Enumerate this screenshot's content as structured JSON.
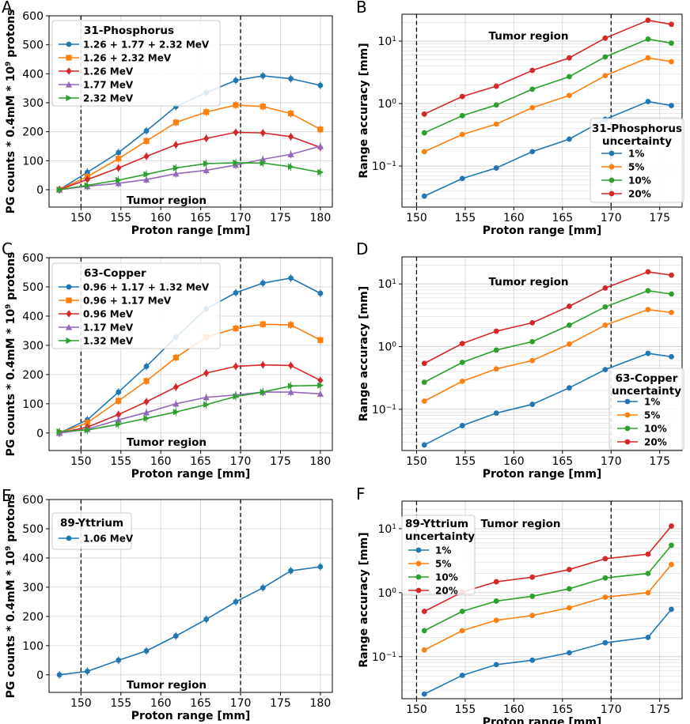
{
  "figure": {
    "region_label": "Tumor region",
    "x_label": "Proton range [mm]",
    "count_y_label": "PG counts * 0.4mM * 10⁹ protons",
    "accuracy_y_label": "Range accuracy [mm]"
  },
  "chart_data": [
    {
      "panel": "A",
      "type": "line",
      "title": "",
      "xlabel": "Proton range [mm]",
      "ylabel": "PG counts * 0.4mM * 10⁹ protons",
      "xlim": [
        146,
        181.5
      ],
      "ylim": [
        -60,
        600
      ],
      "yscale": "linear",
      "x_ticks": [
        150,
        155,
        160,
        165,
        170,
        175,
        180
      ],
      "y_ticks": [
        0,
        100,
        200,
        300,
        400,
        500,
        600
      ],
      "vlines": [
        150,
        170
      ],
      "region_label": "Tumor region",
      "legend_title": "31-Phosphorus",
      "legend_position": "upper-left",
      "x": [
        147.3,
        150.8,
        154.7,
        158.2,
        161.9,
        165.7,
        169.4,
        172.8,
        176.3,
        180.0
      ],
      "series": [
        {
          "name": "1.26 + 1.77 + 2.32 MeV",
          "color": "#1f77b4",
          "marker": "circle",
          "values": [
            0,
            60,
            128,
            203,
            287,
            335,
            377,
            393,
            383,
            360
          ]
        },
        {
          "name": "1.26 + 2.32 MeV",
          "color": "#ff7f0e",
          "marker": "square",
          "values": [
            0,
            45,
            107,
            168,
            232,
            268,
            292,
            287,
            263,
            208
          ]
        },
        {
          "name": "1.26 MeV",
          "color": "#d62728",
          "marker": "diamond",
          "values": [
            0,
            35,
            75,
            115,
            155,
            177,
            198,
            196,
            183,
            146
          ]
        },
        {
          "name": "1.77 MeV",
          "color": "#9467bd",
          "marker": "triangle-up",
          "values": [
            0,
            12,
            22,
            35,
            55,
            67,
            85,
            105,
            122,
            150
          ]
        },
        {
          "name": "2.32 MeV",
          "color": "#2ca02c",
          "marker": "triangle-right",
          "values": [
            0,
            15,
            33,
            53,
            75,
            90,
            93,
            92,
            79,
            60
          ]
        }
      ]
    },
    {
      "panel": "B",
      "type": "line",
      "title": "",
      "xlabel": "Proton range [mm]",
      "ylabel": "Range accuracy [mm]",
      "xlim": [
        148.5,
        177.3
      ],
      "ylim": [
        0.022,
        27
      ],
      "yscale": "log",
      "x_ticks": [
        150,
        155,
        160,
        165,
        170,
        175
      ],
      "y_ticks": [
        0.1,
        1,
        10
      ],
      "y_tick_labels": [
        "10⁻¹",
        "10⁰",
        "10¹"
      ],
      "vlines": [
        150,
        170
      ],
      "region_label": "Tumor region",
      "legend_title": "31-Phosphorus uncertainty",
      "legend_position": "center-right",
      "x": [
        150.8,
        154.7,
        158.2,
        161.9,
        165.7,
        169.4,
        173.8,
        176.2
      ],
      "series": [
        {
          "name": "1%",
          "color": "#1f77b4",
          "marker": "circle",
          "values": [
            0.033,
            0.063,
            0.093,
            0.17,
            0.27,
            0.56,
            1.08,
            0.93
          ]
        },
        {
          "name": "5%",
          "color": "#ff7f0e",
          "marker": "circle",
          "values": [
            0.17,
            0.32,
            0.47,
            0.86,
            1.35,
            2.8,
            5.4,
            4.7
          ]
        },
        {
          "name": "10%",
          "color": "#2ca02c",
          "marker": "circle",
          "values": [
            0.34,
            0.64,
            0.95,
            1.7,
            2.7,
            5.6,
            10.8,
            9.3
          ]
        },
        {
          "name": "20%",
          "color": "#d62728",
          "marker": "circle",
          "values": [
            0.68,
            1.3,
            1.9,
            3.4,
            5.4,
            11.2,
            21.6,
            18.6
          ]
        }
      ]
    },
    {
      "panel": "C",
      "type": "line",
      "title": "",
      "xlabel": "Proton range [mm]",
      "ylabel": "PG counts * 0.4mM * 10⁹ protons",
      "xlim": [
        146,
        181.5
      ],
      "ylim": [
        -60,
        600
      ],
      "yscale": "linear",
      "x_ticks": [
        150,
        155,
        160,
        165,
        170,
        175,
        180
      ],
      "y_ticks": [
        0,
        100,
        200,
        300,
        400,
        500,
        600
      ],
      "vlines": [
        150,
        170
      ],
      "region_label": "Tumor region",
      "legend_title": "63-Copper",
      "legend_position": "upper-left",
      "x": [
        147.3,
        150.8,
        154.7,
        158.2,
        161.9,
        165.7,
        169.4,
        172.8,
        176.3,
        180.0
      ],
      "series": [
        {
          "name": "0.96 + 1.17 + 1.32 MeV",
          "color": "#1f77b4",
          "marker": "circle",
          "values": [
            0,
            45,
            140,
            228,
            328,
            425,
            480,
            513,
            530,
            478
          ]
        },
        {
          "name": "0.96 + 1.17 MeV",
          "color": "#ff7f0e",
          "marker": "square",
          "values": [
            0,
            35,
            110,
            178,
            258,
            328,
            358,
            372,
            370,
            318
          ]
        },
        {
          "name": "0.96 MeV",
          "color": "#d62728",
          "marker": "diamond",
          "values": [
            0,
            20,
            63,
            107,
            157,
            205,
            228,
            233,
            231,
            180
          ]
        },
        {
          "name": "1.17 MeV",
          "color": "#9467bd",
          "marker": "triangle-up",
          "values": [
            0,
            13,
            45,
            70,
            100,
            122,
            130,
            140,
            140,
            134
          ]
        },
        {
          "name": "1.32 MeV",
          "color": "#2ca02c",
          "marker": "triangle-right",
          "values": [
            5,
            10,
            30,
            50,
            72,
            97,
            125,
            140,
            161,
            163
          ]
        }
      ]
    },
    {
      "panel": "D",
      "type": "line",
      "title": "",
      "xlabel": "Proton range [mm]",
      "ylabel": "Range accuracy [mm]",
      "xlim": [
        148.5,
        177.3
      ],
      "ylim": [
        0.022,
        27
      ],
      "yscale": "log",
      "x_ticks": [
        150,
        155,
        160,
        165,
        170,
        175
      ],
      "y_ticks": [
        0.1,
        1,
        10
      ],
      "y_tick_labels": [
        "10⁻¹",
        "10⁰",
        "10¹"
      ],
      "vlines": [
        150,
        170
      ],
      "region_label": "Tumor region",
      "legend_title": "63-Copper uncertainty",
      "legend_position": "lower-right",
      "x": [
        150.8,
        154.7,
        158.2,
        161.9,
        165.7,
        169.4,
        173.8,
        176.2
      ],
      "series": [
        {
          "name": "1%",
          "color": "#1f77b4",
          "marker": "circle",
          "values": [
            0.027,
            0.055,
            0.087,
            0.12,
            0.22,
            0.43,
            0.78,
            0.69
          ]
        },
        {
          "name": "5%",
          "color": "#ff7f0e",
          "marker": "circle",
          "values": [
            0.135,
            0.28,
            0.44,
            0.6,
            1.1,
            2.2,
            3.9,
            3.5
          ]
        },
        {
          "name": "10%",
          "color": "#2ca02c",
          "marker": "circle",
          "values": [
            0.27,
            0.56,
            0.88,
            1.2,
            2.2,
            4.3,
            7.8,
            6.9
          ]
        },
        {
          "name": "20%",
          "color": "#d62728",
          "marker": "circle",
          "values": [
            0.54,
            1.12,
            1.76,
            2.4,
            4.4,
            8.6,
            15.6,
            13.8
          ]
        }
      ]
    },
    {
      "panel": "E",
      "type": "line",
      "title": "",
      "xlabel": "Proton range [mm]",
      "ylabel": "PG counts * 0.4mM * 10⁹ protons",
      "xlim": [
        146,
        181.5
      ],
      "ylim": [
        -60,
        600
      ],
      "yscale": "linear",
      "x_ticks": [
        150,
        155,
        160,
        165,
        170,
        175,
        180
      ],
      "y_ticks": [
        0,
        100,
        200,
        300,
        400,
        500,
        600
      ],
      "vlines": [
        150,
        170
      ],
      "region_label": "Tumor region",
      "legend_title": "89-Yttrium",
      "legend_position": "upper-left",
      "x": [
        147.3,
        150.8,
        154.7,
        158.2,
        161.9,
        165.7,
        169.4,
        172.8,
        176.3,
        180.0
      ],
      "series": [
        {
          "name": "1.06 MeV",
          "color": "#1f77b4",
          "marker": "circle",
          "values": [
            0,
            12,
            50,
            82,
            133,
            190,
            250,
            298,
            356,
            370
          ]
        }
      ]
    },
    {
      "panel": "F",
      "type": "line",
      "title": "",
      "xlabel": "Proton range [mm]",
      "ylabel": "Range accuracy [mm]",
      "xlim": [
        148.5,
        177.3
      ],
      "ylim": [
        0.022,
        27
      ],
      "yscale": "log",
      "x_ticks": [
        150,
        155,
        160,
        165,
        170,
        175
      ],
      "y_ticks": [
        0.1,
        1,
        10
      ],
      "y_tick_labels": [
        "10⁻¹",
        "10⁰",
        "10¹"
      ],
      "vlines": [
        150,
        170
      ],
      "region_label": "Tumor region",
      "legend_title": "89-Yttrium uncertainty",
      "legend_position": "upper-left",
      "x": [
        150.8,
        154.7,
        158.2,
        161.9,
        165.7,
        169.4,
        173.8,
        176.2
      ],
      "series": [
        {
          "name": "1%",
          "color": "#1f77b4",
          "marker": "circle",
          "values": [
            0.026,
            0.051,
            0.075,
            0.088,
            0.115,
            0.165,
            0.2,
            0.55
          ]
        },
        {
          "name": "5%",
          "color": "#ff7f0e",
          "marker": "circle",
          "values": [
            0.127,
            0.255,
            0.37,
            0.44,
            0.58,
            0.85,
            1.0,
            2.75
          ]
        },
        {
          "name": "10%",
          "color": "#2ca02c",
          "marker": "circle",
          "values": [
            0.255,
            0.51,
            0.74,
            0.88,
            1.15,
            1.7,
            2.0,
            5.5
          ]
        },
        {
          "name": "20%",
          "color": "#d62728",
          "marker": "circle",
          "values": [
            0.51,
            1.02,
            1.48,
            1.75,
            2.3,
            3.4,
            4.0,
            11.0
          ]
        }
      ]
    }
  ]
}
